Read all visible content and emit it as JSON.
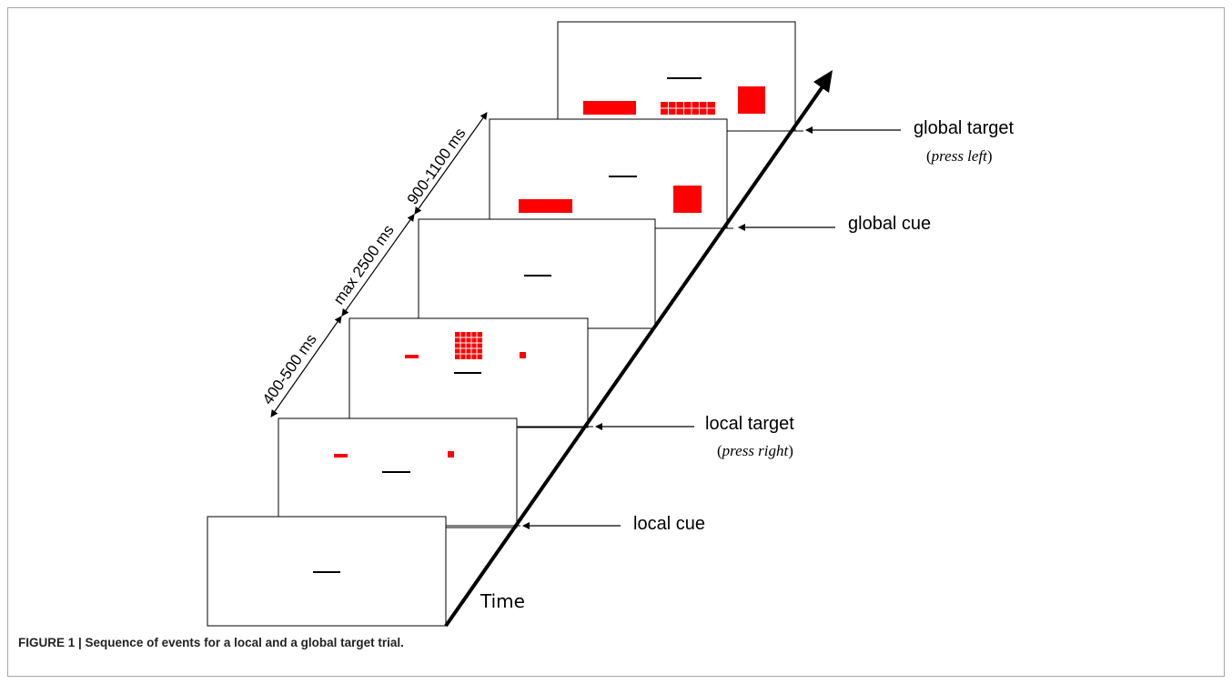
{
  "diagram": {
    "time_label": "Time",
    "durations": {
      "fixation": "400-500 ms",
      "response": "max 2500 ms",
      "cue_target": "900-1100 ms"
    },
    "events": {
      "global_target": "global target",
      "global_target_response": "press left",
      "global_cue": "global cue",
      "local_target": "local target",
      "local_target_response": "press right",
      "local_cue": "local cue"
    },
    "stimulus_color": "#ff0000",
    "fixation_color": "#000000"
  },
  "caption": {
    "label": "FIGURE 1 | ",
    "text": "Sequence of events for a local and a global target trial."
  }
}
